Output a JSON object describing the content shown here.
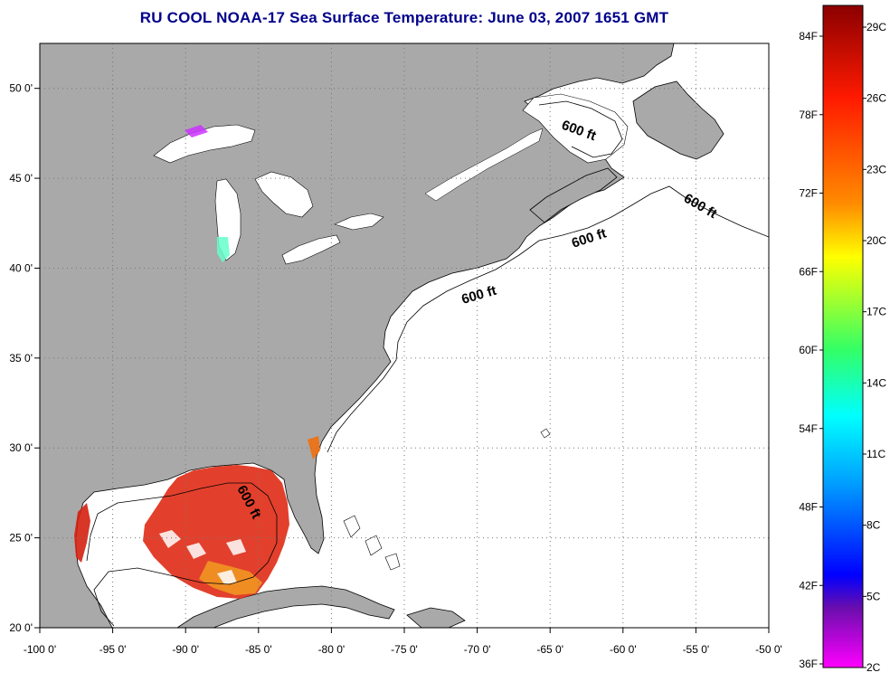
{
  "title": "RU COOL  NOAA-17  Sea Surface Temperature:  June 03, 2007 1651 GMT",
  "map": {
    "lon_range": [
      -100,
      -50
    ],
    "lat_range": [
      20,
      52.5
    ],
    "grid": true,
    "lon_ticks": [
      "-100 0'",
      "-95 0'",
      "-90 0'",
      "-85 0'",
      "-80 0'",
      "-75 0'",
      "-70 0'",
      "-65 0'",
      "-60 0'",
      "-55 0'",
      "-50 0'"
    ],
    "lat_ticks": [
      "20 0'",
      "25 0'",
      "30 0'",
      "35 0'",
      "40 0'",
      "45 0'",
      "50 0'"
    ],
    "contour_labels": [
      "600 ft",
      "600 ft",
      "600 ft",
      "600 ft",
      "600 ft"
    ],
    "colors": {
      "land": "#a9a9a9",
      "ocean": "#ffffff",
      "coast": "#000000"
    }
  },
  "colorbar": {
    "fahrenheit_labels": [
      "84F",
      "78F",
      "72F",
      "66F",
      "60F",
      "54F",
      "48F",
      "42F",
      "36F"
    ],
    "celsius_labels": [
      "29C",
      "26C",
      "23C",
      "20C",
      "17C",
      "14C",
      "11C",
      "8C",
      "5C",
      "2C"
    ]
  }
}
